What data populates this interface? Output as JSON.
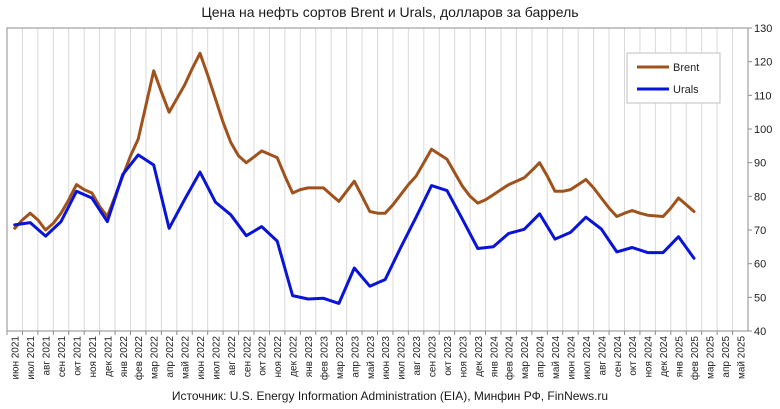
{
  "chart_data": {
    "type": "line",
    "title": "Цена на нефть сортов Brent и Urals, долларов за баррель",
    "source": "Источник: U.S. Energy Information Administration (EIA), Минфин РФ, FinNews.ru",
    "xlabel": "",
    "ylabel": "",
    "ylim": [
      40,
      130
    ],
    "yticks": [
      40,
      50,
      60,
      70,
      80,
      90,
      100,
      110,
      120,
      130
    ],
    "grid": "vertical",
    "legend_position": "top-right",
    "categories": [
      "июн 2021",
      "июл 2021",
      "авг 2021",
      "сен 2021",
      "окт 2021",
      "ноя 2021",
      "дек 2021",
      "янв 2022",
      "фев 2022",
      "мар 2022",
      "апр 2022",
      "май 2022",
      "июн 2022",
      "июл 2022",
      "авг 2022",
      "сен 2022",
      "окт 2022",
      "ноя 2022",
      "дек 2022",
      "янв 2023",
      "фев 2023",
      "мар 2023",
      "апр 2023",
      "май 2023",
      "июн 2023",
      "июл 2023",
      "авг 2023",
      "сен 2023",
      "окт 2023",
      "ноя 2023",
      "дек 2023",
      "янв 2024",
      "фев 2024",
      "мар 2024",
      "апр 2024",
      "май 2024",
      "июн 2024",
      "июл 2024",
      "авг 2024",
      "сен 2024",
      "окт 2024",
      "ноя 2024",
      "дек 2024",
      "янв 2025",
      "фев 2025",
      "мар 2025",
      "апр 2025",
      "май 2025"
    ],
    "series": [
      {
        "name": "Brent",
        "color": "#a0521c",
        "x": [
          0,
          0.5,
          1,
          1.5,
          2,
          2.5,
          3,
          3.5,
          4,
          4.5,
          5,
          5.5,
          6,
          6.5,
          7,
          7.5,
          8,
          8.5,
          9,
          9.5,
          10,
          10.5,
          11,
          11.5,
          12,
          12.5,
          13,
          13.5,
          14,
          14.5,
          15,
          15.5,
          16,
          16.5,
          17,
          17.5,
          18,
          18.5,
          19,
          19.5,
          20,
          20.5,
          21,
          21.5,
          22,
          22.5,
          23,
          23.5,
          24,
          24.5,
          25,
          25.5,
          26,
          26.5,
          27,
          27.5,
          28,
          28.5,
          29,
          29.5,
          30,
          30.5,
          31,
          31.5,
          32,
          32.5,
          33,
          33.5,
          34,
          34.5,
          35,
          35.5,
          36,
          36.5,
          37,
          37.5,
          38,
          38.5,
          39,
          39.5,
          40,
          40.5,
          41,
          41.5,
          42,
          42.5,
          43,
          43.5,
          44
        ],
        "values": [
          70.5,
          73.0,
          75.0,
          73.0,
          70.0,
          72.0,
          75.0,
          79.0,
          83.5,
          82.0,
          81.0,
          77.0,
          74.0,
          80.0,
          86.0,
          92.0,
          97.0,
          107.0,
          117.3,
          111.0,
          105.0,
          109.0,
          113.0,
          118.0,
          122.5,
          116.0,
          109.0,
          102.0,
          96.0,
          92.0,
          90.0,
          91.7,
          93.5,
          92.5,
          91.5,
          86.0,
          81.0,
          82.0,
          82.5,
          82.5,
          82.5,
          80.5,
          78.5,
          81.5,
          84.5,
          80.0,
          75.5,
          75.0,
          75.0,
          77.5,
          80.5,
          83.5,
          86.0,
          90.0,
          94.0,
          92.5,
          91.0,
          87.0,
          83.0,
          80.0,
          78.0,
          79.0,
          80.5,
          82.0,
          83.5,
          84.5,
          85.5,
          87.7,
          90.0,
          86.0,
          81.5,
          81.5,
          82.0,
          83.5,
          85.0,
          82.5,
          79.5,
          76.5,
          74.0,
          75.0,
          75.8,
          75.0,
          74.4,
          74.2,
          74.0,
          76.5,
          79.5,
          77.5,
          75.5
        ]
      },
      {
        "name": "Urals",
        "color": "#0a14d6",
        "x": [
          0,
          1,
          2,
          3,
          4,
          5,
          6,
          7,
          8,
          9,
          10,
          11,
          12,
          13,
          14,
          15,
          16,
          17,
          18,
          19,
          20,
          21,
          22,
          23,
          24,
          25,
          26,
          27,
          28,
          29,
          30,
          31,
          32,
          33,
          34,
          35,
          36,
          37,
          38,
          39,
          40,
          41,
          42,
          43,
          44
        ],
        "values": [
          71.5,
          72.2,
          68.2,
          72.5,
          81.5,
          79.5,
          72.5,
          86.5,
          92.3,
          89.3,
          70.5,
          79.0,
          87.2,
          78.3,
          74.5,
          68.3,
          71.0,
          66.7,
          50.5,
          49.5,
          49.7,
          48.2,
          58.7,
          53.3,
          55.3,
          64.8,
          73.8,
          83.2,
          81.7,
          73.2,
          64.5,
          65.0,
          69.0,
          70.2,
          74.8,
          67.3,
          69.3,
          73.8,
          70.3,
          63.5,
          64.8,
          63.3,
          63.3,
          68.0,
          61.6
        ]
      }
    ]
  }
}
